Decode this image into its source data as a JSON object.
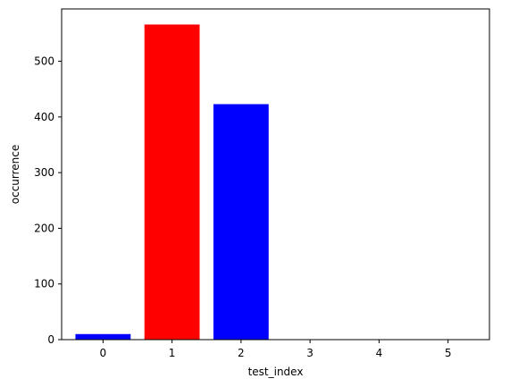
{
  "chart_data": {
    "type": "bar",
    "title": "",
    "xlabel": "test_index",
    "ylabel": "occurrence",
    "categories": [
      "0",
      "1",
      "2",
      "3",
      "4",
      "5"
    ],
    "values": [
      10,
      566,
      423,
      0,
      0,
      0
    ],
    "colors": [
      "#0000ff",
      "#ff0000",
      "#0000ff",
      "#0000ff",
      "#0000ff",
      "#0000ff"
    ],
    "xlim": [
      -0.6,
      5.6
    ],
    "ylim": [
      0,
      594
    ],
    "yticks": [
      0,
      100,
      200,
      300,
      400,
      500
    ],
    "grid": false,
    "legend": "none"
  }
}
